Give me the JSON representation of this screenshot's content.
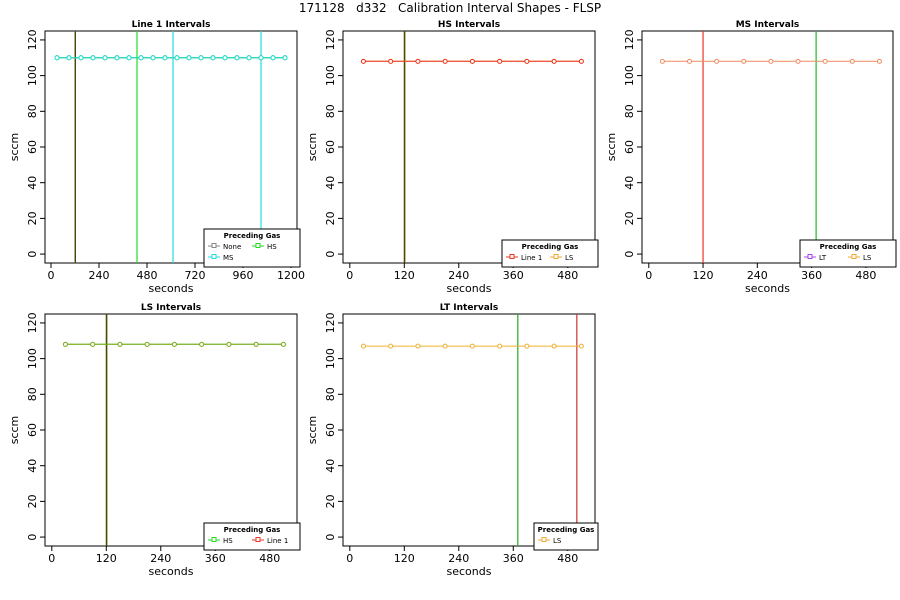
{
  "suptitle": "171128   d332   Calibration Interval Shapes - FLSP",
  "colors": {
    "None": "#888888",
    "HS": "#22dd22",
    "MS": "#22dddd",
    "Line 1": "#ee3322",
    "LS": "#f0a830",
    "LT": "#aa44ee",
    "LineOrange": "#f08a60"
  },
  "chart_data": [
    {
      "type": "line",
      "title": "Line 1 Intervals",
      "xlabel": "seconds",
      "ylabel": "sccm",
      "xlim": [
        -30,
        1230
      ],
      "ylim": [
        -5,
        125
      ],
      "xticks": [
        0,
        240,
        480,
        720,
        960,
        1200
      ],
      "yticks": [
        0,
        20,
        40,
        60,
        80,
        100,
        120
      ],
      "legend_title": "Preceding Gas",
      "legend_rows": [
        [
          "None",
          "HS"
        ],
        [
          "MS"
        ]
      ],
      "legend": [
        {
          "name": "None",
          "color": "#888888"
        },
        {
          "name": "HS",
          "color": "#22dd22"
        },
        {
          "name": "MS",
          "color": "#22dddd"
        }
      ],
      "series": [
        {
          "name": "None",
          "color": "#888888",
          "x": [
            30,
            90,
            150,
            210,
            270,
            330,
            390,
            450,
            510,
            570,
            630,
            690,
            750,
            810,
            870,
            930,
            990,
            1050,
            1110,
            1170
          ],
          "y": [
            110,
            110,
            110,
            110,
            110,
            110,
            110,
            110,
            110,
            110,
            110,
            110,
            110,
            110,
            110,
            110,
            110,
            110,
            110,
            110
          ]
        },
        {
          "name": "HS",
          "color": "#22dd22",
          "x": [
            30,
            90,
            150,
            210,
            270,
            330,
            390,
            450,
            510,
            570,
            630,
            690,
            750,
            810,
            870,
            930,
            990,
            1050,
            1110,
            1170
          ],
          "y": [
            110,
            110,
            110,
            110,
            110,
            110,
            110,
            110,
            110,
            110,
            110,
            110,
            110,
            110,
            110,
            110,
            110,
            110,
            110,
            110
          ]
        },
        {
          "name": "MS",
          "color": "#22dddd",
          "x": [
            30,
            90,
            150,
            210,
            270,
            330,
            390,
            450,
            510,
            570,
            630,
            690,
            750,
            810,
            870,
            930,
            990,
            1050,
            1110,
            1170
          ],
          "y": [
            110,
            110,
            110,
            110,
            110,
            110,
            110,
            110,
            110,
            110,
            110,
            110,
            110,
            110,
            110,
            110,
            110,
            110,
            110,
            110
          ]
        }
      ],
      "vlines": [
        {
          "x": 120,
          "color": "#888888"
        },
        {
          "x": 122,
          "color": "#4a4a00"
        },
        {
          "x": 430,
          "color": "#22dd22"
        },
        {
          "x": 610,
          "color": "#22dddd"
        },
        {
          "x": 1050,
          "color": "#22dddd"
        }
      ]
    },
    {
      "type": "line",
      "title": "HS Intervals",
      "xlabel": "seconds",
      "ylabel": "sccm",
      "xlim": [
        -15,
        540
      ],
      "ylim": [
        -5,
        125
      ],
      "xticks": [
        0,
        120,
        240,
        360,
        480
      ],
      "yticks": [
        0,
        20,
        40,
        60,
        80,
        100,
        120
      ],
      "legend_title": "Preceding Gas",
      "legend_rows": [
        [
          "Line 1",
          "LS"
        ]
      ],
      "legend": [
        {
          "name": "Line 1",
          "color": "#ee3322"
        },
        {
          "name": "LS",
          "color": "#f0a830"
        }
      ],
      "series": [
        {
          "name": "LS",
          "color": "#f0a830",
          "x": [
            30,
            90,
            150,
            210,
            270,
            330,
            390,
            450,
            510
          ],
          "y": [
            108,
            108,
            108,
            108,
            108,
            108,
            108,
            108,
            108
          ]
        },
        {
          "name": "Line 1",
          "color": "#ee3322",
          "x": [
            30,
            90,
            150,
            210,
            270,
            330,
            390,
            450,
            510
          ],
          "y": [
            108,
            108,
            108,
            108,
            108,
            108,
            108,
            108,
            108
          ]
        }
      ],
      "vlines": [
        {
          "x": 120,
          "color": "#6a6a00"
        },
        {
          "x": 121,
          "color": "#444400"
        }
      ]
    },
    {
      "type": "line",
      "title": "MS Intervals",
      "xlabel": "seconds",
      "ylabel": "sccm",
      "xlim": [
        -15,
        540
      ],
      "ylim": [
        -5,
        125
      ],
      "xticks": [
        0,
        120,
        240,
        360,
        480
      ],
      "yticks": [
        0,
        20,
        40,
        60,
        80,
        100,
        120
      ],
      "legend_title": "Preceding Gas",
      "legend_rows": [
        [
          "LT",
          "LS"
        ]
      ],
      "legend": [
        {
          "name": "LT",
          "color": "#aa44ee"
        },
        {
          "name": "LS",
          "color": "#f0a830"
        }
      ],
      "series": [
        {
          "name": "LT",
          "color": "#f08a60",
          "x": [
            30,
            90,
            150,
            210,
            270,
            330,
            390,
            450,
            510
          ],
          "y": [
            108,
            108,
            108,
            108,
            108,
            108,
            108,
            108,
            108
          ]
        }
      ],
      "vlines": [
        {
          "x": 120,
          "color": "#ee3322"
        },
        {
          "x": 370,
          "color": "#22bb22"
        }
      ]
    },
    {
      "type": "line",
      "title": "LS Intervals",
      "xlabel": "seconds",
      "ylabel": "sccm",
      "xlim": [
        -15,
        540
      ],
      "ylim": [
        -5,
        125
      ],
      "xticks": [
        0,
        120,
        240,
        360,
        480
      ],
      "yticks": [
        0,
        20,
        40,
        60,
        80,
        100,
        120
      ],
      "legend_title": "Preceding Gas",
      "legend_rows": [
        [
          "HS",
          "Line 1"
        ]
      ],
      "legend": [
        {
          "name": "HS",
          "color": "#22dd22"
        },
        {
          "name": "Line 1",
          "color": "#ee3322"
        }
      ],
      "series": [
        {
          "name": "HS",
          "color": "#22cc22",
          "x": [
            30,
            90,
            150,
            210,
            270,
            330,
            390,
            450,
            510
          ],
          "y": [
            108,
            108,
            108,
            108,
            108,
            108,
            108,
            108,
            108
          ]
        },
        {
          "name": "Line 1",
          "color": "#88aa22",
          "x": [
            30,
            90,
            150,
            210,
            270,
            330,
            390,
            450,
            510
          ],
          "y": [
            108,
            108,
            108,
            108,
            108,
            108,
            108,
            108,
            108
          ]
        }
      ],
      "vlines": [
        {
          "x": 120,
          "color": "#6a6a00"
        },
        {
          "x": 121,
          "color": "#444400"
        }
      ]
    },
    {
      "type": "line",
      "title": "LT Intervals",
      "xlabel": "seconds",
      "ylabel": "sccm",
      "xlim": [
        -15,
        540
      ],
      "ylim": [
        -5,
        125
      ],
      "xticks": [
        0,
        120,
        240,
        360,
        480
      ],
      "yticks": [
        0,
        20,
        40,
        60,
        80,
        100,
        120
      ],
      "legend_title": "Preceding Gas",
      "legend_rows": [
        [
          "LS"
        ]
      ],
      "legend": [
        {
          "name": "LS",
          "color": "#f0a830"
        }
      ],
      "series": [
        {
          "name": "LS",
          "color": "#f0b030",
          "x": [
            30,
            90,
            150,
            210,
            270,
            330,
            390,
            450,
            510
          ],
          "y": [
            107,
            107,
            107,
            107,
            107,
            107,
            107,
            107,
            107
          ]
        }
      ],
      "vlines": [
        {
          "x": 370,
          "color": "#22aa22"
        },
        {
          "x": 500,
          "color": "#cc3333"
        }
      ]
    }
  ]
}
